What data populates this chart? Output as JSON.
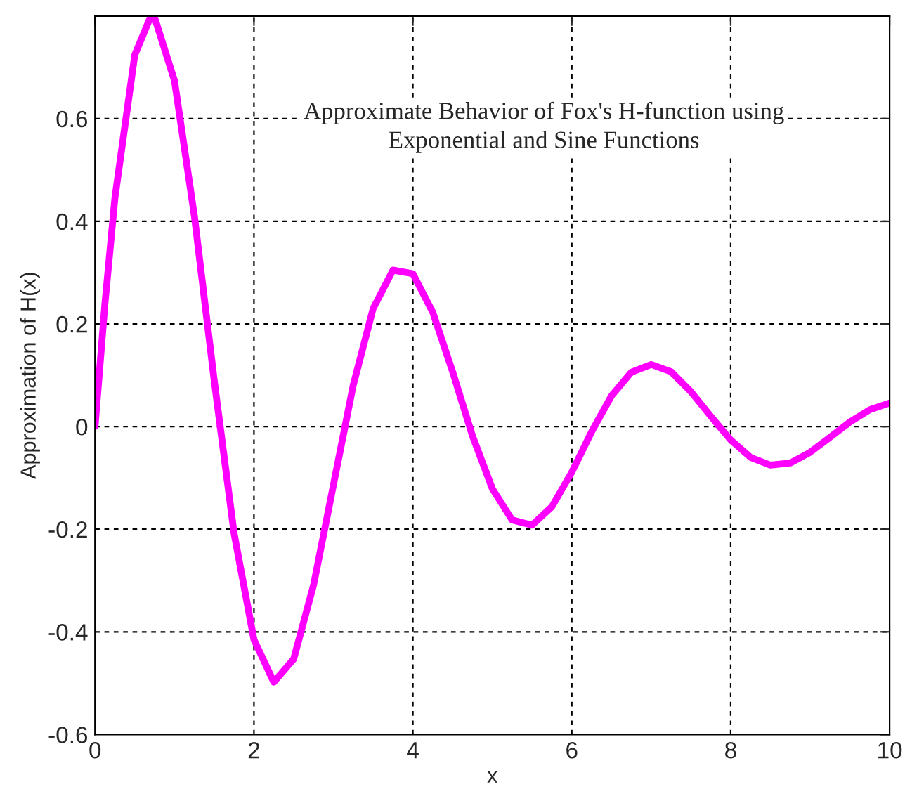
{
  "chart_data": {
    "type": "line",
    "title": "Approximate Behavior of Fox's H-function using\nExponential and Sine Functions",
    "xlabel": "x",
    "ylabel": "Approximation of H(x)",
    "x": [
      0,
      0.125,
      0.25,
      0.5,
      0.7,
      0.75,
      1.0,
      1.25,
      1.5,
      1.75,
      2.0,
      2.25,
      2.5,
      2.75,
      3.0,
      3.25,
      3.5,
      3.75,
      4.0,
      4.25,
      4.5,
      4.75,
      5.0,
      5.25,
      5.5,
      5.75,
      6.0,
      6.25,
      6.5,
      6.75,
      7.0,
      7.25,
      7.5,
      7.75,
      8.0,
      8.25,
      8.5,
      8.75,
      9.0,
      9.25,
      9.5,
      9.75,
      10
    ],
    "series": [
      {
        "color": "#ff00ff",
        "values": [
          0,
          0.24,
          0.445,
          0.724,
          0.799,
          0.797,
          0.674,
          0.411,
          0.09,
          -0.208,
          -0.415,
          -0.498,
          -0.453,
          -0.309,
          -0.114,
          0.081,
          0.23,
          0.305,
          0.298,
          0.223,
          0.107,
          -0.018,
          -0.121,
          -0.182,
          -0.192,
          -0.156,
          -0.089,
          -0.01,
          0.06,
          0.106,
          0.121,
          0.107,
          0.068,
          0.02,
          -0.026,
          -0.06,
          -0.075,
          -0.071,
          -0.05,
          -0.021,
          0.009,
          0.033,
          0.046
        ]
      }
    ],
    "xlim": [
      0,
      10
    ],
    "xticks": [
      0,
      2,
      4,
      6,
      8,
      10
    ],
    "ylim": [
      -0.6,
      0.8
    ],
    "yticks": [
      -0.6,
      -0.4,
      -0.2,
      0,
      0.2,
      0.4,
      0.6
    ],
    "grid": true,
    "line_style": "solid",
    "marker": "none"
  }
}
